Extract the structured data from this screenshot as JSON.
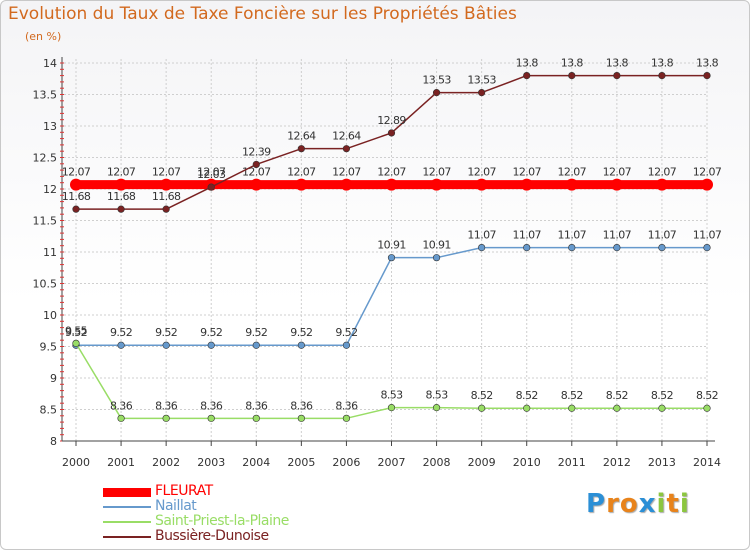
{
  "chart_data": {
    "type": "line",
    "title": "Evolution du Taux de Taxe Foncière sur les Propriétés Bâties",
    "ylabel": "(en %)",
    "xlabel": "",
    "ylim": [
      8,
      14
    ],
    "yticks": [
      "8",
      "8.5",
      "9",
      "9.5",
      "10",
      "10.5",
      "11",
      "11.5",
      "12",
      "12.5",
      "13",
      "13.5",
      "14"
    ],
    "categories": [
      "2000",
      "2001",
      "2002",
      "2003",
      "2004",
      "2005",
      "2006",
      "2007",
      "2008",
      "2009",
      "2010",
      "2011",
      "2012",
      "2013",
      "2014"
    ],
    "series": [
      {
        "name": "FLEURAT",
        "color": "#ff0000",
        "values": [
          12.07,
          12.07,
          12.07,
          12.07,
          12.07,
          12.07,
          12.07,
          12.07,
          12.07,
          12.07,
          12.07,
          12.07,
          12.07,
          12.07,
          12.07
        ],
        "labels": [
          "12.07",
          "12.07",
          "12.07",
          "12.07",
          "12.07",
          "12.07",
          "12.07",
          "12.07",
          "12.07",
          "12.07",
          "12.07",
          "12.07",
          "12.07",
          "12.07",
          "12.07"
        ]
      },
      {
        "name": "Naillat",
        "color": "#6699cc",
        "values": [
          9.52,
          9.52,
          9.52,
          9.52,
          9.52,
          9.52,
          9.52,
          10.91,
          10.91,
          11.07,
          11.07,
          11.07,
          11.07,
          11.07,
          11.07
        ],
        "labels": [
          "9.52",
          "9.52",
          "9.52",
          "9.52",
          "9.52",
          "9.52",
          "9.52",
          "10.91",
          "10.91",
          "11.07",
          "11.07",
          "11.07",
          "11.07",
          "11.07",
          "11.07"
        ]
      },
      {
        "name": "Saint-Priest-la-Plaine",
        "color": "#99dd66",
        "values": [
          9.55,
          8.36,
          8.36,
          8.36,
          8.36,
          8.36,
          8.36,
          8.53,
          8.53,
          8.52,
          8.52,
          8.52,
          8.52,
          8.52,
          8.52
        ],
        "labels": [
          "9.55",
          "8.36",
          "8.36",
          "8.36",
          "8.36",
          "8.36",
          "8.36",
          "8.53",
          "8.53",
          "8.52",
          "8.52",
          "8.52",
          "8.52",
          "8.52",
          "8.52"
        ]
      },
      {
        "name": "Bussière-Dunoise",
        "color": "#7a2222",
        "values": [
          11.68,
          11.68,
          11.68,
          12.03,
          12.39,
          12.64,
          12.64,
          12.89,
          13.53,
          13.53,
          13.8,
          13.8,
          13.8,
          13.8,
          13.8
        ],
        "labels": [
          "11.68",
          "11.68",
          "11.68",
          "12.03",
          "12.39",
          "12.64",
          "12.64",
          "12.89",
          "13.53",
          "13.53",
          "13.8",
          "13.8",
          "13.8",
          "13.8",
          "13.8"
        ]
      }
    ]
  },
  "logo": {
    "letters": [
      "P",
      "r",
      "o",
      "x",
      "i",
      "t",
      "i"
    ],
    "colors": [
      "#2b8fd6",
      "#e8831b",
      "#e8831b",
      "#2b8fd6",
      "#8cc63f",
      "#e8831b",
      "#8cc63f"
    ]
  }
}
